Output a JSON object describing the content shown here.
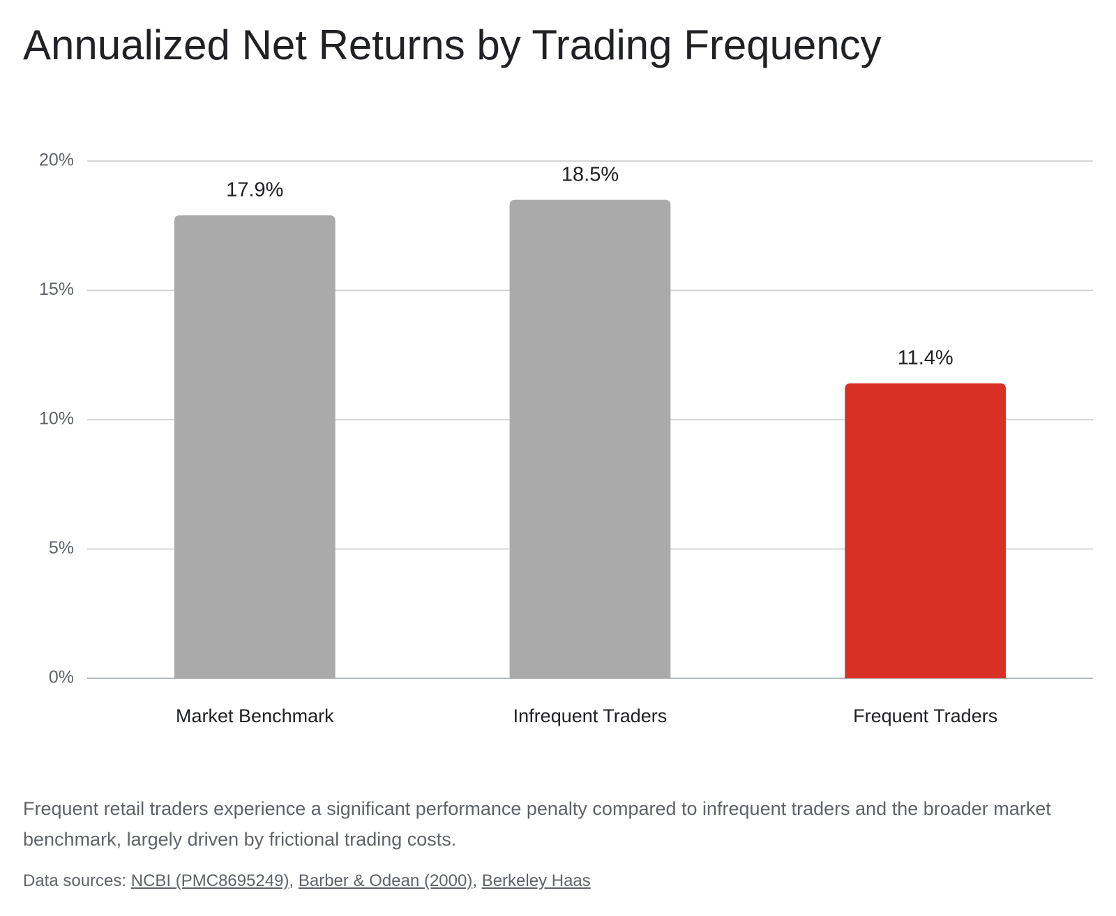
{
  "chart_data": {
    "type": "bar",
    "title": "Annualized Net Returns by Trading Frequency",
    "categories": [
      "Market Benchmark",
      "Infrequent Traders",
      "Frequent Traders"
    ],
    "values": [
      17.9,
      18.5,
      11.4
    ],
    "value_labels": [
      "17.9%",
      "18.5%",
      "11.4%"
    ],
    "colors": [
      "#aaaaaa",
      "#aaaaaa",
      "#d93025"
    ],
    "ylim": [
      0,
      20
    ],
    "yticks": [
      {
        "value": 0,
        "label": "0%"
      },
      {
        "value": 5,
        "label": "5%"
      },
      {
        "value": 10,
        "label": "10%"
      },
      {
        "value": 15,
        "label": "15%"
      },
      {
        "value": 20,
        "label": "20%"
      }
    ],
    "grid": true
  },
  "description": "Frequent retail traders experience a significant performance penalty compared to infrequent traders and the broader market benchmark, largely driven by frictional trading costs.",
  "sources": {
    "label": "Data sources:",
    "separator": ",",
    "links": [
      "NCBI (PMC8695249)",
      "Barber & Odean (2000)",
      "Berkeley Haas"
    ]
  }
}
